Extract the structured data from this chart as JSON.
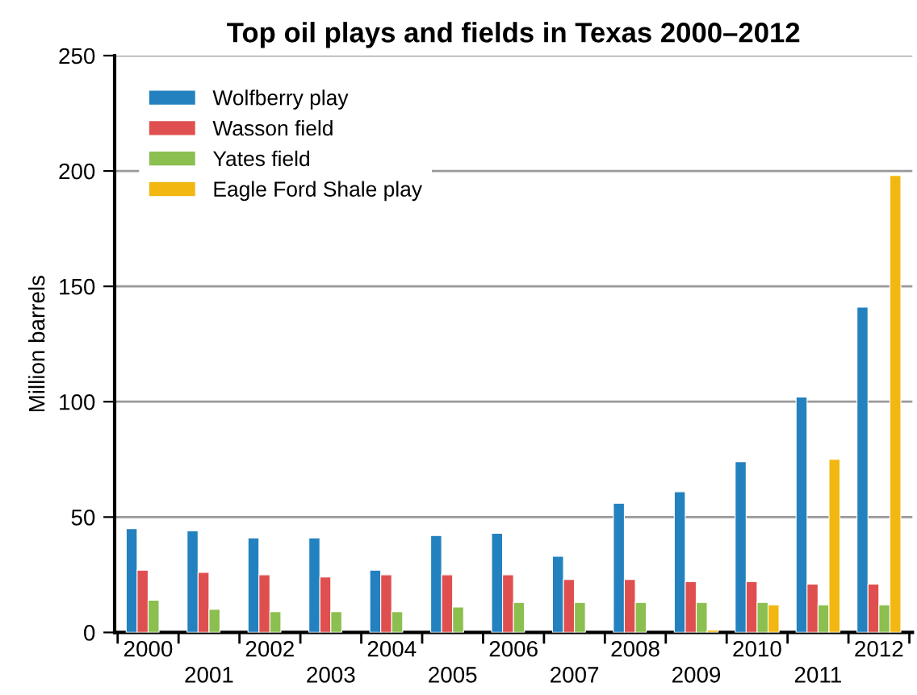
{
  "chart_data": {
    "type": "bar",
    "title": "Top oil plays and fields in Texas 2000–2012",
    "ylabel": "Million barrels",
    "categories": [
      "2000",
      "2001",
      "2002",
      "2003",
      "2004",
      "2005",
      "2006",
      "2007",
      "2008",
      "2009",
      "2010",
      "2011",
      "2012"
    ],
    "series": [
      {
        "name": "Wolfberry play",
        "color": "#2381bf",
        "values": [
          45,
          44,
          41,
          41,
          27,
          42,
          43,
          33,
          56,
          61,
          74,
          102,
          141
        ]
      },
      {
        "name": "Wasson field",
        "color": "#e04f4f",
        "values": [
          27,
          26,
          25,
          24,
          25,
          25,
          25,
          23,
          23,
          22,
          22,
          21,
          21
        ]
      },
      {
        "name": "Yates field",
        "color": "#8bbf4f",
        "values": [
          14,
          10,
          9,
          9,
          9,
          11,
          13,
          13,
          13,
          13,
          13,
          12,
          12
        ]
      },
      {
        "name": "Eagle Ford Shale play",
        "color": "#f2b711",
        "values": [
          null,
          null,
          null,
          null,
          null,
          null,
          null,
          null,
          null,
          1,
          12,
          75,
          198
        ]
      }
    ],
    "ylim": [
      0,
      250
    ],
    "yticks": [
      0,
      50,
      100,
      150,
      200,
      250
    ],
    "grid": "y",
    "legend": "top left"
  }
}
